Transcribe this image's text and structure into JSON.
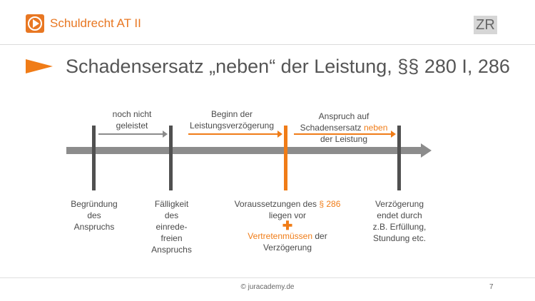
{
  "header": {
    "course": "Schuldrecht AT II",
    "badge": "ZR"
  },
  "slide": {
    "title": "Schadensersatz „neben“ der Leistung, §§ 280 I, 286"
  },
  "phases": {
    "p1": {
      "line1": "noch nicht",
      "line2": "geleistet"
    },
    "p2": {
      "line1": "Beginn der",
      "line2": "Leistungsverzögerung"
    },
    "p3": {
      "line1": "Anspruch auf",
      "line2a": "Schadensersatz ",
      "line2b": "neben",
      "line3": "der Leistung"
    }
  },
  "milestones": {
    "m1": {
      "l1": "Begründung",
      "l2": "des",
      "l3": "Anspruchs"
    },
    "m2": {
      "l1": "Fälligkeit",
      "l2": "des",
      "l3": "einrede-",
      "l4": "freien",
      "l5": "Anspruchs"
    },
    "m3": {
      "l1a": "Voraussetzungen des ",
      "l1b": "§ 286",
      "l2": "liegen vor",
      "plus": "✚",
      "l4a": "Vertretenmüssen",
      "l4b": " der",
      "l5": "Verzögerung"
    },
    "m4": {
      "l1": "Verzögerung",
      "l2": "endet durch",
      "l3": "z.B. Erfüllung,",
      "l4": "Stundung etc."
    }
  },
  "footer": {
    "copyright": "© juracademy.de",
    "page": "7"
  },
  "colors": {
    "accent": "#f07c17",
    "axis": "#8c8c8c",
    "tick": "#505050"
  }
}
